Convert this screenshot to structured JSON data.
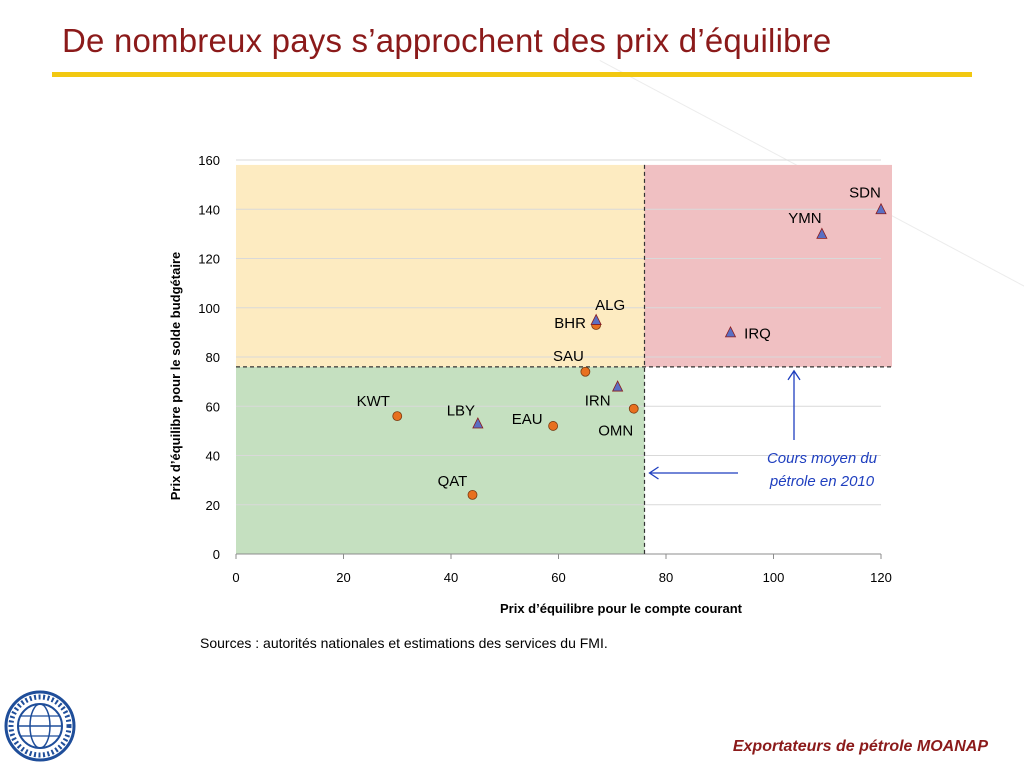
{
  "slide": {
    "title": "De nombreux pays s’approchent des prix d’équilibre",
    "sources": "Sources : autorités nationales et estimations des services du FMI.",
    "footer": "Exportateurs de pétrole MOANAP",
    "logo_icon": "imf-seal-icon",
    "accent_color": "#f2c811",
    "title_color": "#8b1a1a"
  },
  "chart_data": {
    "type": "scatter",
    "title": "",
    "xlabel": "Prix d’équilibre pour le compte courant",
    "ylabel": "Prix d’équilibre pour le solde budgétaire",
    "xlim": [
      0,
      120
    ],
    "ylim": [
      0,
      160
    ],
    "xticks": [
      0,
      20,
      40,
      60,
      80,
      100,
      120
    ],
    "yticks": [
      0,
      20,
      40,
      60,
      80,
      100,
      120,
      140,
      160
    ],
    "grid": "horizontal",
    "threshold": {
      "x": 76,
      "y": 76
    },
    "regions": [
      {
        "name": "green",
        "color": "#c5e0c0",
        "x": [
          0,
          76
        ],
        "y": [
          0,
          76
        ]
      },
      {
        "name": "yellow",
        "color": "#fdebc1",
        "x": [
          0,
          76
        ],
        "y": [
          76,
          158
        ]
      },
      {
        "name": "red",
        "color": "#f0c0c2",
        "x": [
          76,
          120
        ],
        "y": [
          76,
          158
        ]
      }
    ],
    "series": [
      {
        "marker": "circle",
        "color": "#e8701f",
        "points": [
          {
            "label": "KWT",
            "x": 30,
            "y": 56
          },
          {
            "label": "QAT",
            "x": 44,
            "y": 24
          },
          {
            "label": "EAU",
            "x": 59,
            "y": 52
          },
          {
            "label": "SAU",
            "x": 65,
            "y": 74
          },
          {
            "label": "BHR",
            "x": 67,
            "y": 93
          },
          {
            "label": "OMN",
            "x": 74,
            "y": 59
          }
        ]
      },
      {
        "marker": "triangle",
        "color": "#5a6fc4",
        "points": [
          {
            "label": "LBY",
            "x": 45,
            "y": 53
          },
          {
            "label": "ALG",
            "x": 67,
            "y": 95
          },
          {
            "label": "IRN",
            "x": 71,
            "y": 68
          },
          {
            "label": "IRQ",
            "x": 92,
            "y": 90
          },
          {
            "label": "YMN",
            "x": 109,
            "y": 130
          },
          {
            "label": "SDN",
            "x": 120,
            "y": 140
          }
        ]
      }
    ],
    "annotation": {
      "lines": [
        "Cours moyen du",
        "pétrole en 2010"
      ],
      "color": "#1f3fbf"
    }
  }
}
